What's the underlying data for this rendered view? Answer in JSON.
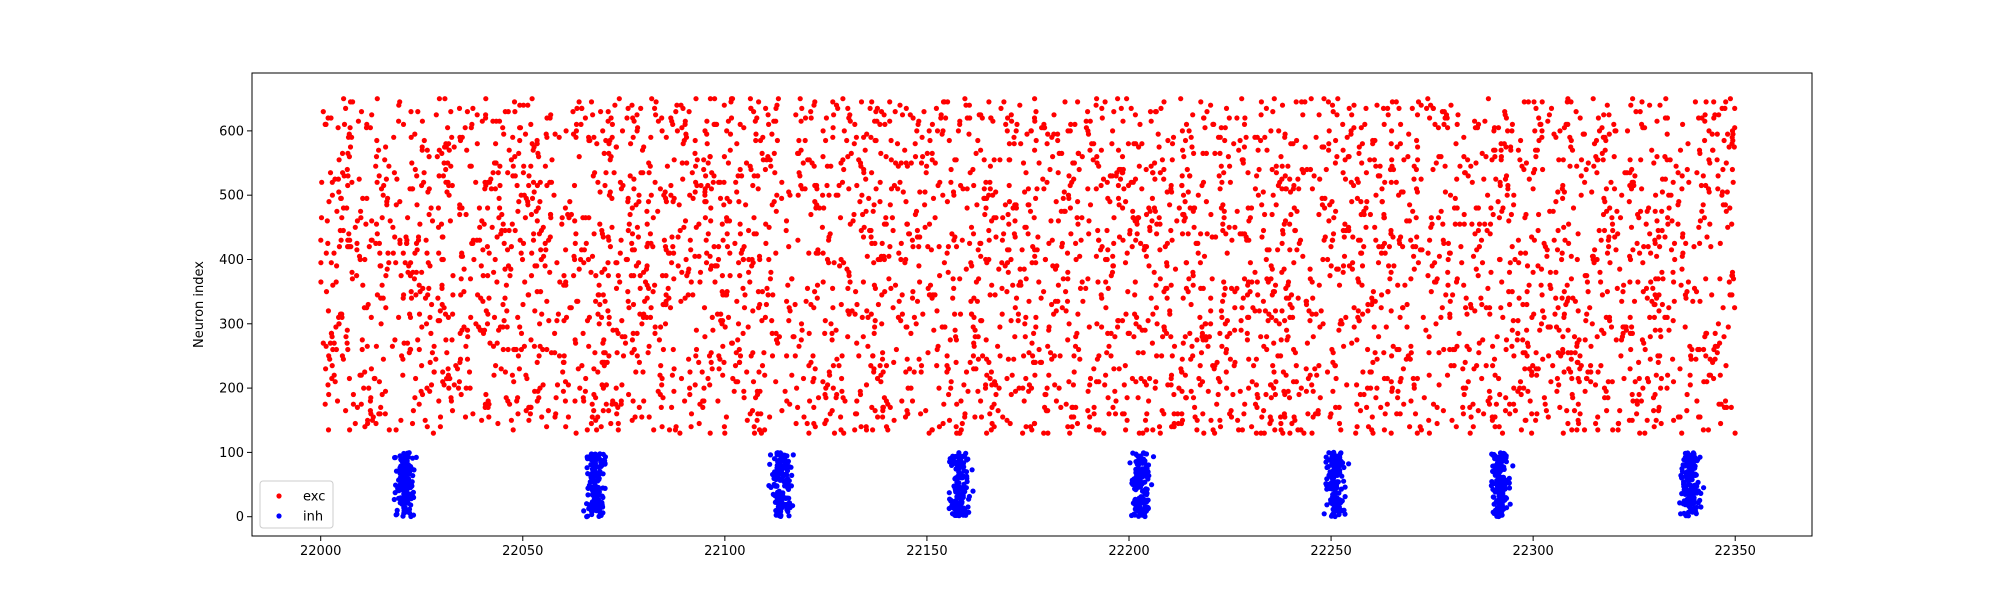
{
  "chart_data": {
    "type": "scatter",
    "ylabel": "Neuron index",
    "xlim": [
      21983,
      22369
    ],
    "ylim": [
      -30,
      690
    ],
    "x_ticks": [
      22000,
      22050,
      22100,
      22150,
      22200,
      22250,
      22300,
      22350
    ],
    "y_ticks": [
      0,
      100,
      200,
      300,
      400,
      500,
      600
    ],
    "legend_position": "lower-left",
    "series": [
      {
        "name": "exc",
        "color": "#ff0000",
        "x_range": [
          22000,
          22350
        ],
        "y_range": [
          130,
          655
        ],
        "n_points": 4200
      },
      {
        "name": "inh",
        "color": "#0000ff",
        "x_range": [
          22018,
          22343
        ],
        "y_range": [
          0,
          100
        ],
        "bursts_x": [
          22021,
          22068,
          22114,
          22158,
          22203,
          22251,
          22292,
          22339
        ],
        "points_per_burst": 150
      }
    ]
  }
}
